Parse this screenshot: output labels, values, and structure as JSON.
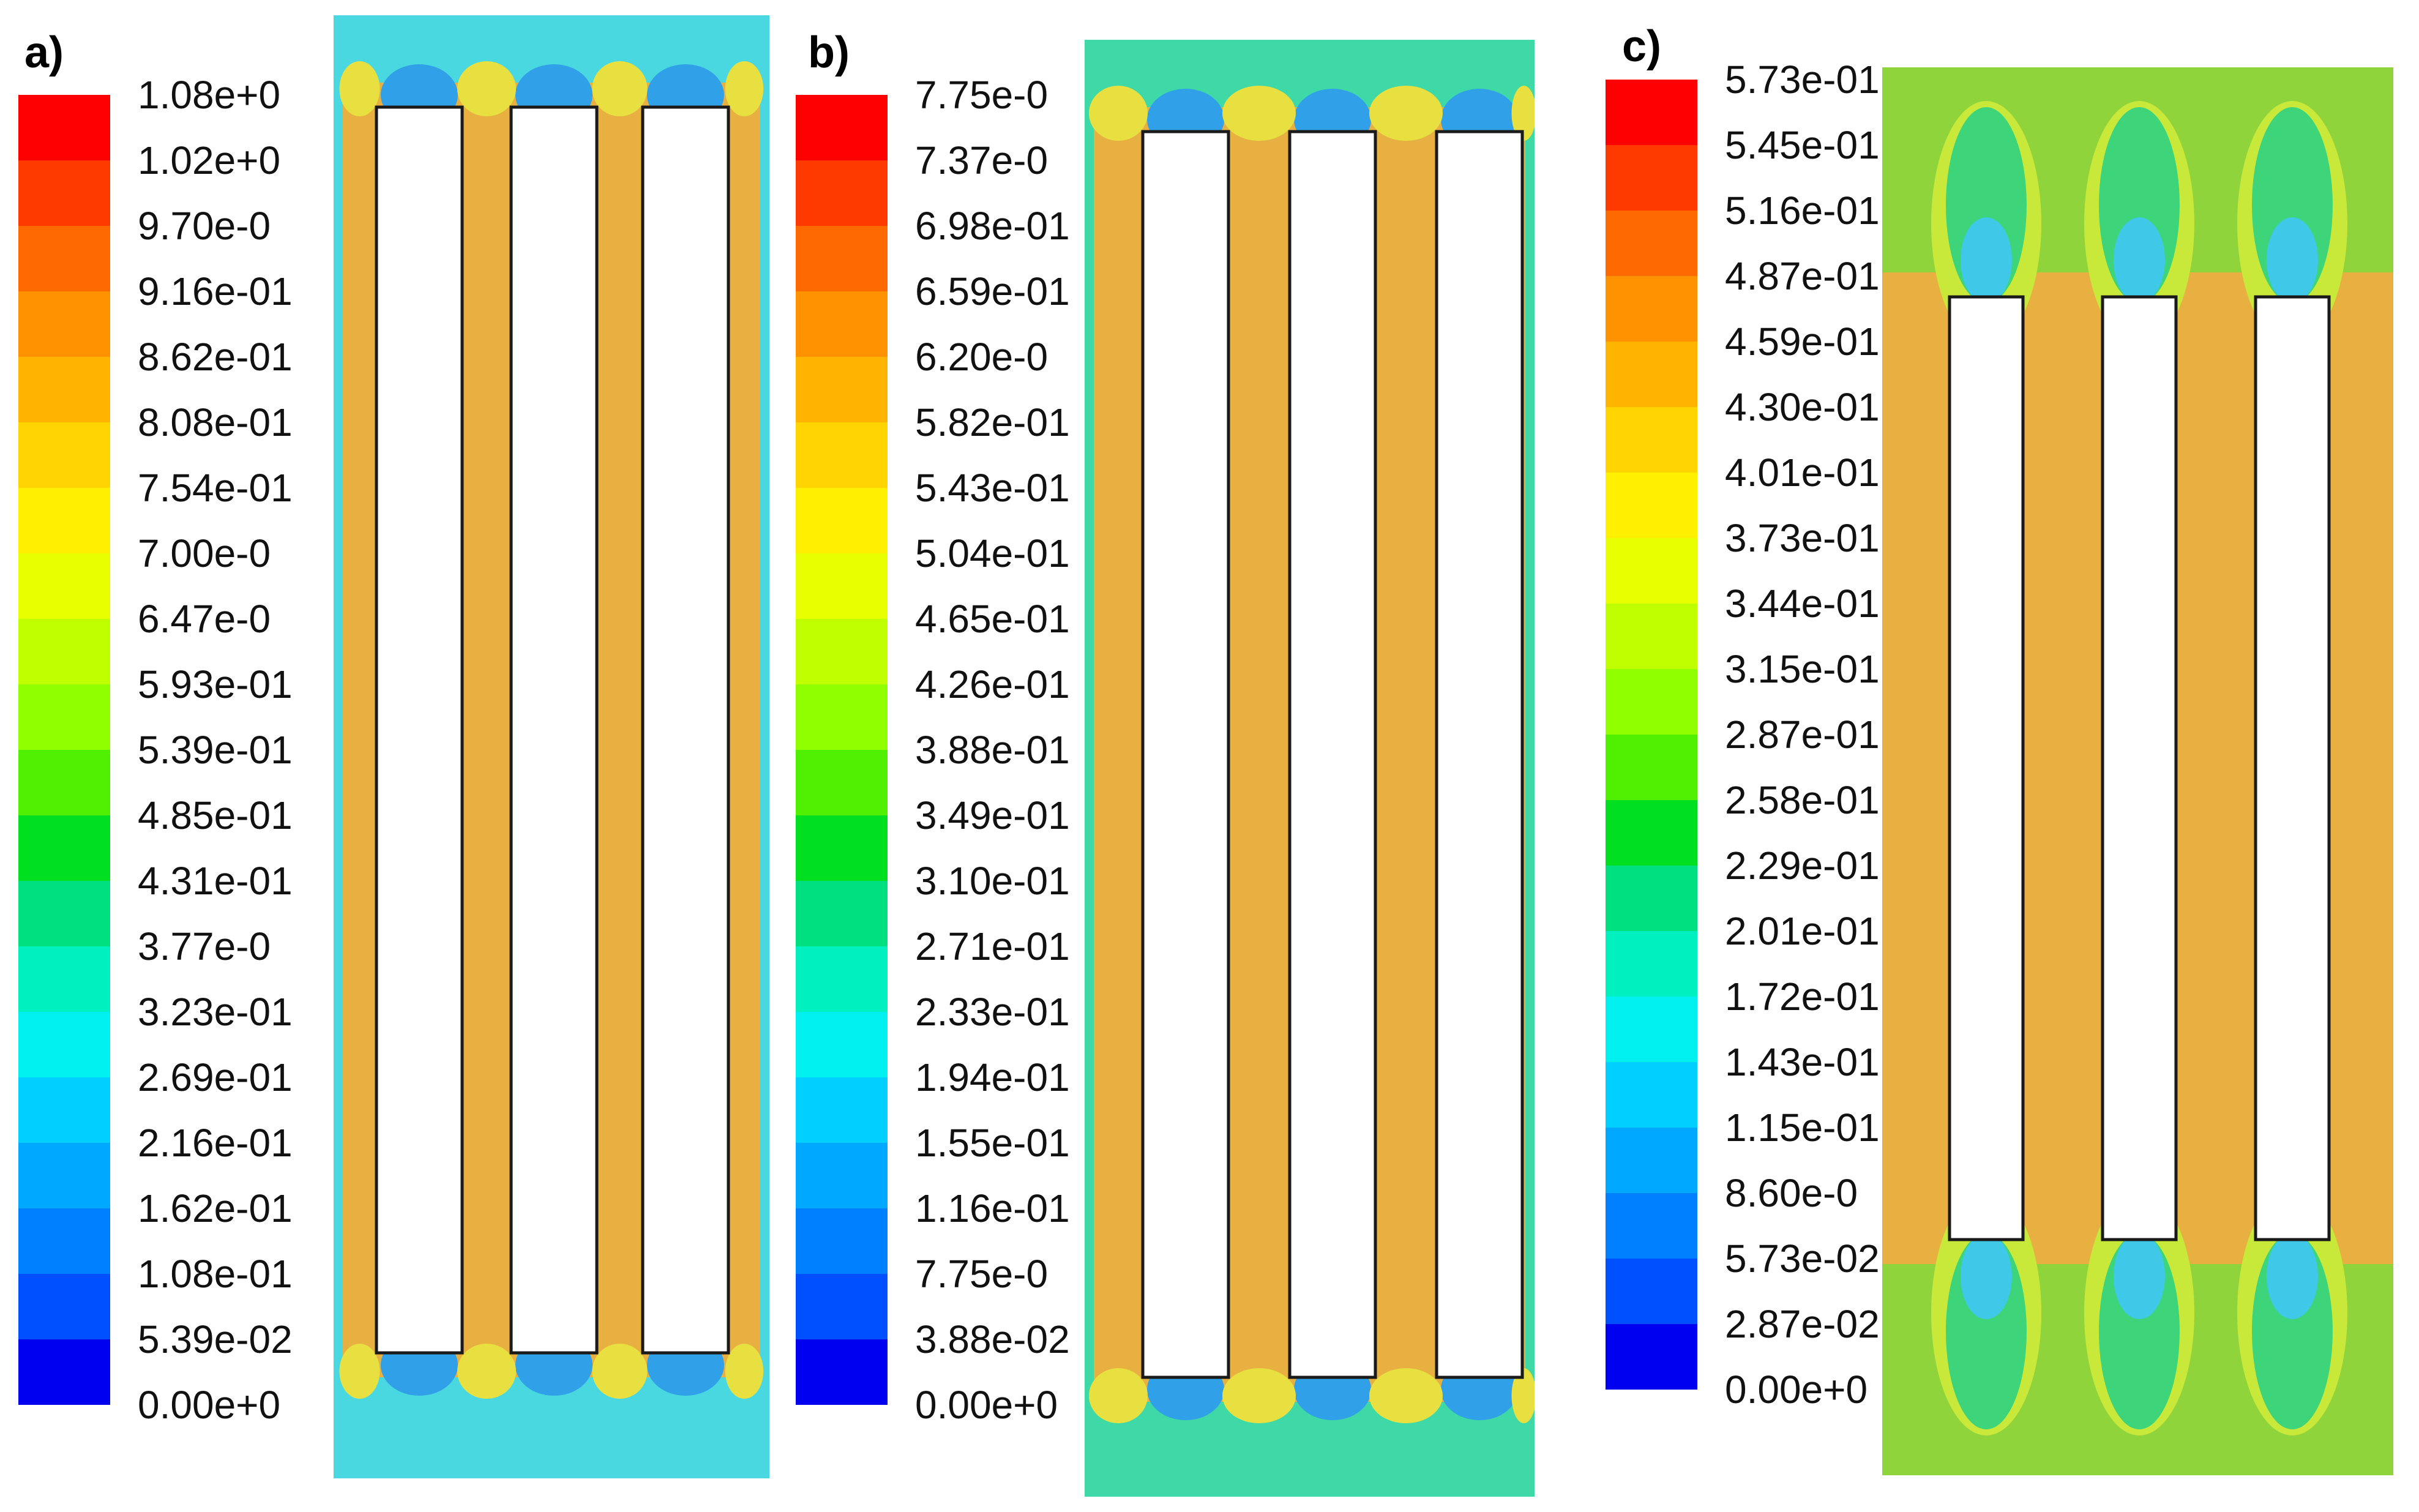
{
  "panels": [
    {
      "label": "a)",
      "legend": [
        "1.08e+0",
        "1.02e+0",
        "9.70e-0",
        "9.16e-01",
        "8.62e-01",
        "8.08e-01",
        "7.54e-01",
        "7.00e-0",
        "6.47e-0",
        "5.93e-01",
        "5.39e-01",
        "4.85e-01",
        "4.31e-01",
        "3.77e-0",
        "3.23e-01",
        "2.69e-01",
        "2.16e-01",
        "1.62e-01",
        "1.08e-01",
        "5.39e-02",
        "0.00e+0"
      ],
      "background_color": "#4ad8e0",
      "channel_color": "#e8b040",
      "plate_count": 3
    },
    {
      "label": "b)",
      "legend": [
        "7.75e-0",
        "7.37e-0",
        "6.98e-01",
        "6.59e-01",
        "6.20e-0",
        "5.82e-01",
        "5.43e-01",
        "5.04e-01",
        "4.65e-01",
        "4.26e-01",
        "3.88e-01",
        "3.49e-01",
        "3.10e-01",
        "2.71e-01",
        "2.33e-01",
        "1.94e-01",
        "1.55e-01",
        "1.16e-01",
        "7.75e-0",
        "3.88e-02",
        "0.00e+0"
      ],
      "background_color": "#3fd9a8",
      "channel_color": "#e8b040",
      "plate_count": 3
    },
    {
      "label": "c)",
      "legend": [
        "5.73e-01",
        "5.45e-01",
        "5.16e-01",
        "4.87e-01",
        "4.59e-01",
        "4.30e-01",
        "4.01e-01",
        "3.73e-01",
        "3.44e-01",
        "3.15e-01",
        "2.87e-01",
        "2.58e-01",
        "2.29e-01",
        "2.01e-01",
        "1.72e-01",
        "1.43e-01",
        "1.15e-01",
        "8.60e-0",
        "5.73e-02",
        "2.87e-02",
        "0.00e+0"
      ],
      "background_color": "#8fd43a",
      "channel_color": "#e8b040",
      "plate_count": 3
    }
  ],
  "colormap": [
    "#ff0000",
    "#ff3a00",
    "#ff6a00",
    "#ff9200",
    "#ffb400",
    "#ffd400",
    "#fff000",
    "#e8ff00",
    "#c0ff00",
    "#90ff00",
    "#50f000",
    "#00e020",
    "#00e080",
    "#00f0c0",
    "#00f0f0",
    "#00d0ff",
    "#00a8ff",
    "#0080ff",
    "#0050ff",
    "#0000f0"
  ]
}
